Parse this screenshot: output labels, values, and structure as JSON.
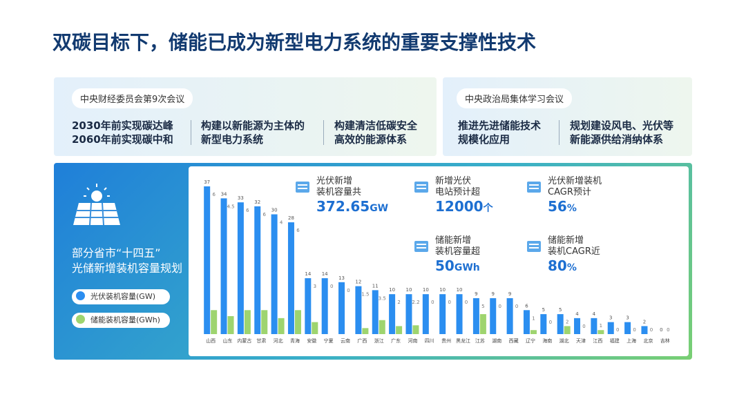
{
  "header": {
    "title": "双碳目标下，储能已成为新型电力系统的重要支撑性技术"
  },
  "meetings": [
    {
      "label": "中央财经委员会第9次会议",
      "items": [
        [
          "2030年前实现碳达峰",
          "2060年前实现碳中和"
        ],
        [
          "构建以新能源为主体的",
          "新型电力系统"
        ],
        [
          "构建清洁低碳安全",
          "高效的能源体系"
        ]
      ]
    },
    {
      "label": "中央政治局集体学习会议",
      "items": [
        [
          "推进先进储能技术",
          "规模化应用"
        ],
        [
          "规划建设风电、光伏等",
          "新能源供给消纳体系"
        ]
      ]
    }
  ],
  "stats": [
    {
      "label": [
        "光伏新增",
        "装机容量共"
      ],
      "value": "372.65",
      "unit": "GW"
    },
    {
      "label": [
        "新增光伏",
        "电站预计超"
      ],
      "value": "12000",
      "unit": "个"
    },
    {
      "label": [
        "光伏新增装机",
        "CAGR预计"
      ],
      "value": "56",
      "unit": "%"
    },
    {
      "label": [
        "储能新增",
        "装机容量超"
      ],
      "value": "50",
      "unit": "GWh"
    },
    {
      "label": [
        "储能新增",
        "装机CAGR近"
      ],
      "value": "80",
      "unit": "%"
    }
  ],
  "chart_data": {
    "type": "bar",
    "title": "部分省市“十四五”\n光储新增装机容量规划",
    "categories": [
      "山西",
      "山东",
      "内蒙古",
      "甘肃",
      "河北",
      "青海",
      "安徽",
      "宁夏",
      "云南",
      "广西",
      "浙江",
      "广东",
      "河南",
      "四川",
      "贵州",
      "黑龙江",
      "江苏",
      "湖南",
      "西藏",
      "辽宁",
      "海南",
      "湖北",
      "天津",
      "江西",
      "福建",
      "上海",
      "北京",
      "吉林"
    ],
    "series": [
      {
        "name": "光伏装机容量(GW)",
        "color": "#2b8ef0",
        "values": [
          37,
          34,
          33,
          32,
          30,
          28,
          14,
          14,
          13,
          12,
          11,
          10,
          10,
          10,
          10,
          10,
          9,
          9,
          9,
          6,
          5,
          5,
          4,
          4,
          3,
          3,
          2,
          0
        ]
      },
      {
        "name": "储能装机容量(GWh)",
        "color": "#9ed46f",
        "values": [
          6,
          4.5,
          6,
          6,
          4,
          6,
          3,
          0,
          0,
          1.5,
          3.5,
          2,
          2.2,
          0,
          0,
          0,
          5,
          0,
          0,
          1,
          0,
          2,
          0,
          1,
          0,
          0,
          0,
          0
        ]
      }
    ]
  }
}
